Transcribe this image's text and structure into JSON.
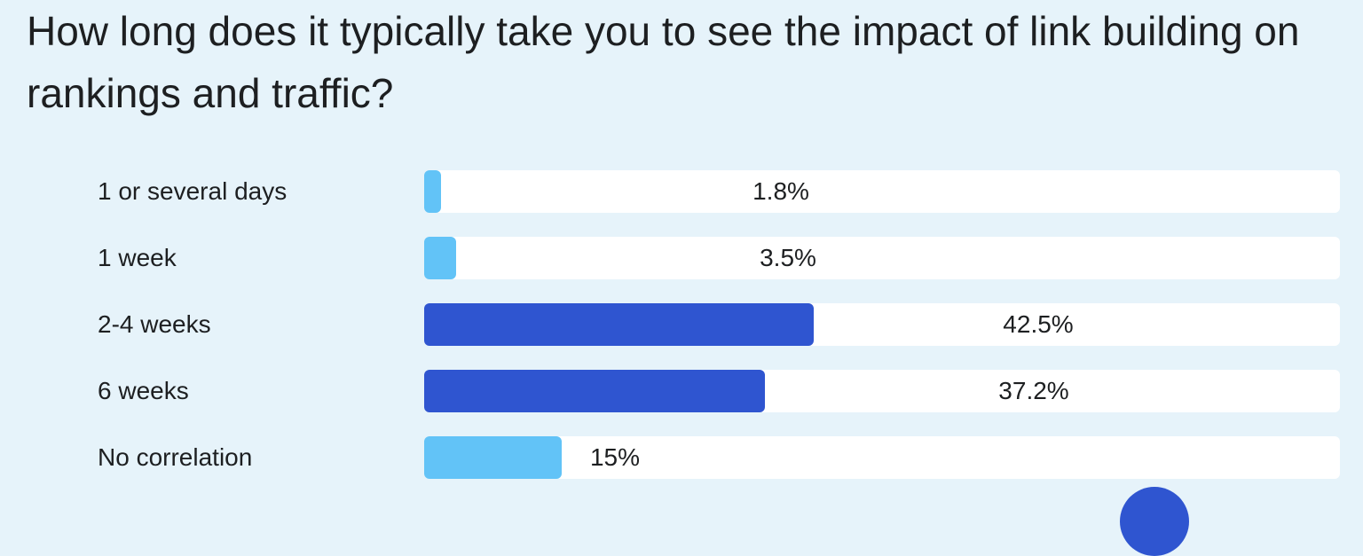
{
  "chart_data": {
    "type": "bar",
    "orientation": "horizontal",
    "title": "How long does it typically take you to see the impact of link building on rankings and traffic?",
    "categories": [
      "1 or several days",
      "1 week",
      "2-4 weeks",
      "6 weeks",
      "No correlation"
    ],
    "values": [
      1.8,
      3.5,
      42.5,
      37.2,
      15
    ],
    "value_labels": [
      "1.8%",
      "3.5%",
      "42.5%",
      "37.2%",
      "15%"
    ],
    "xlim": [
      0,
      100
    ],
    "unit": "%",
    "grid": false,
    "colors": [
      "#62c3f7",
      "#62c3f7",
      "#2f55d0",
      "#2f55d0",
      "#62c3f7"
    ],
    "track_color": "#ffffff",
    "background": "#e6f3fa"
  }
}
